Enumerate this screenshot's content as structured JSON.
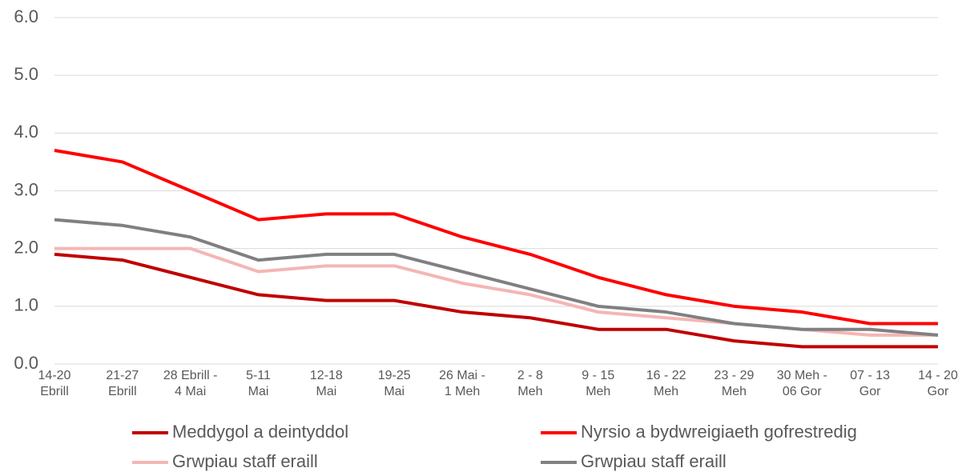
{
  "chart_data": {
    "type": "line",
    "categories": [
      "14-20\nEbrill",
      "21-27\nEbrill",
      "28 Ebrill -\n4 Mai",
      "5-11\nMai",
      "12-18\nMai",
      "19-25\nMai",
      "26 Mai -\n1 Meh",
      "2 - 8\nMeh",
      "9 - 15\nMeh",
      "16 - 22\nMeh",
      "23 - 29\nMeh",
      "30 Meh -\n06 Gor",
      "07 - 13\nGor",
      "14 - 20\nGor"
    ],
    "series": [
      {
        "name": "Meddygol a deintyddol",
        "color": "#c00000",
        "values": [
          1.9,
          1.8,
          1.5,
          1.2,
          1.1,
          1.1,
          0.9,
          0.8,
          0.6,
          0.6,
          0.4,
          0.3,
          0.3,
          0.3
        ]
      },
      {
        "name": "Nyrsio a bydwreigiaeth gofrestredig",
        "color": "#ff0000",
        "values": [
          3.7,
          3.5,
          3.0,
          2.5,
          2.6,
          2.6,
          2.2,
          1.9,
          1.5,
          1.2,
          1.0,
          0.9,
          0.7,
          0.7
        ]
      },
      {
        "name": "Grwpiau staff eraill",
        "color": "#f4b6b4",
        "values": [
          2.0,
          2.0,
          2.0,
          1.6,
          1.7,
          1.7,
          1.4,
          1.2,
          0.9,
          0.8,
          0.7,
          0.6,
          0.5,
          0.5
        ]
      },
      {
        "name": "Grwpiau staff eraill",
        "color": "#808080",
        "values": [
          2.5,
          2.4,
          2.2,
          1.8,
          1.9,
          1.9,
          1.6,
          1.3,
          1.0,
          0.9,
          0.7,
          0.6,
          0.6,
          0.5
        ]
      }
    ],
    "ylim": [
      0,
      6
    ],
    "yticks": [
      {
        "value": 0,
        "label": "0.0"
      },
      {
        "value": 1,
        "label": "1.0"
      },
      {
        "value": 2,
        "label": "2.0"
      },
      {
        "value": 3,
        "label": "3.0"
      },
      {
        "value": 4,
        "label": "4.0"
      },
      {
        "value": 5,
        "label": "5.0"
      },
      {
        "value": 6,
        "label": "6.0"
      }
    ],
    "grid": true,
    "legend": "bottom"
  }
}
